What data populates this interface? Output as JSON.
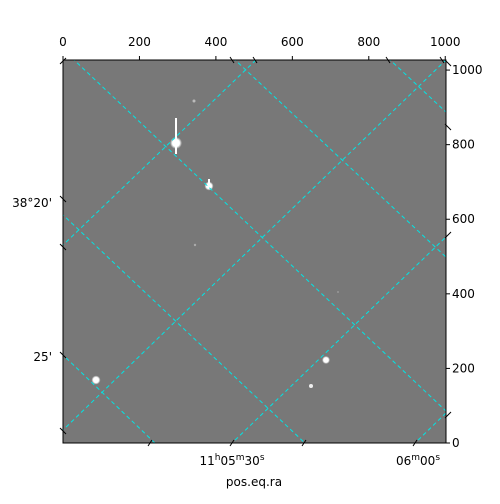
{
  "chart_data": {
    "type": "image",
    "x_label": "pos.eq.ra",
    "xlim": [
      0,
      1002
    ],
    "ylim": [
      0,
      1027
    ],
    "xticks": [
      0,
      200,
      400,
      600,
      800,
      1000
    ],
    "yticks": [
      0,
      200,
      400,
      600,
      800,
      1000
    ],
    "world_y_ticks": [
      "38°20'",
      "25'"
    ],
    "world_x_ticks": [
      [
        "11",
        "h",
        "05",
        "m",
        "30",
        "s"
      ],
      [
        "06",
        "m",
        "00",
        "s"
      ]
    ],
    "grid_color": "#00e5e5"
  }
}
